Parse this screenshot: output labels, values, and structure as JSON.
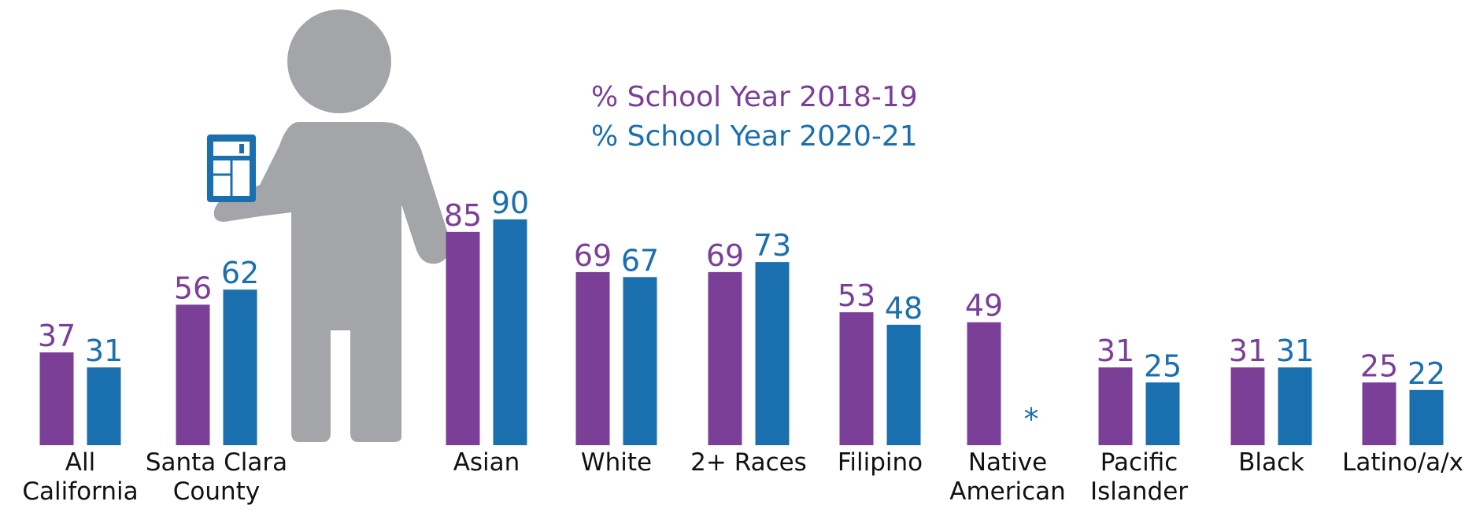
{
  "chart_data": {
    "type": "bar",
    "categories": [
      [
        "All",
        "California"
      ],
      [
        "Santa Clara",
        "County"
      ],
      [
        "Asian"
      ],
      [
        "White"
      ],
      [
        "2+ Races"
      ],
      [
        "Filipino"
      ],
      [
        "Native",
        "American"
      ],
      [
        "Pacific",
        "Islander"
      ],
      [
        "Black"
      ],
      [
        "Latino/a/x"
      ]
    ],
    "series": [
      {
        "name": "% School Year 2018-19",
        "color": "#7b3f98",
        "values": [
          37,
          56,
          85,
          69,
          69,
          53,
          49,
          31,
          31,
          25
        ]
      },
      {
        "name": "% School Year 2020-21",
        "color": "#1a6faf",
        "values": [
          31,
          62,
          90,
          67,
          73,
          48,
          null,
          25,
          31,
          22
        ],
        "value_labels": [
          "31",
          "62",
          "90",
          "67",
          "73",
          "48",
          "*",
          "25",
          "31",
          "22"
        ]
      }
    ]
  }
}
